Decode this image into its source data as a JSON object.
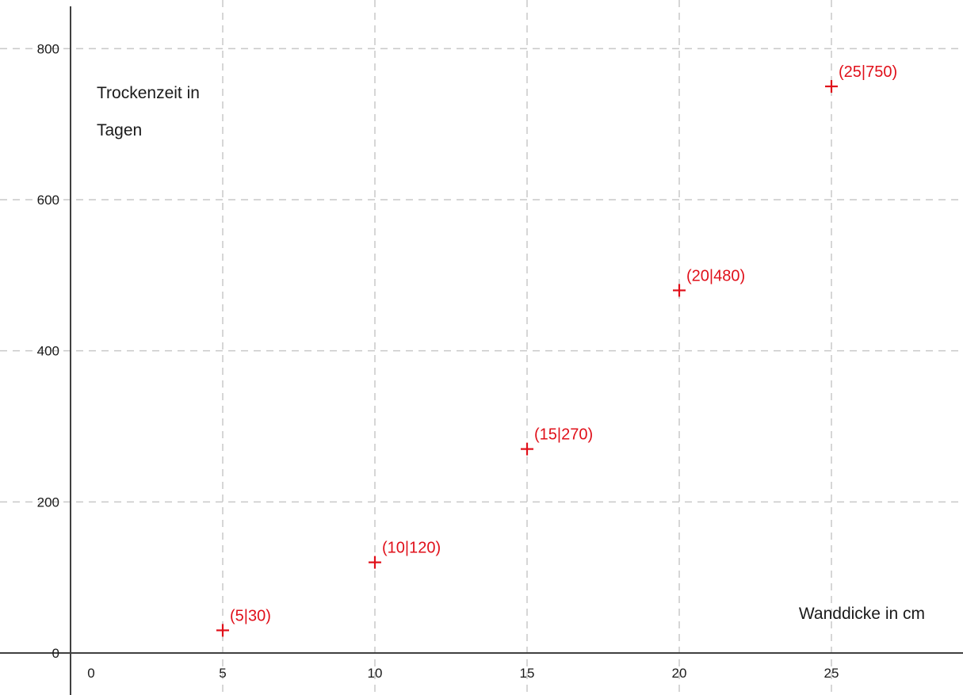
{
  "chart_data": {
    "type": "scatter",
    "title": "",
    "xlabel": "Wanddicke in cm",
    "ylabel_lines": [
      "Trockenzeit in",
      "Tagen"
    ],
    "xlim": [
      -0.7,
      29
    ],
    "ylim": [
      -20,
      850
    ],
    "x_ticks": [
      0,
      5,
      10,
      15,
      20,
      25
    ],
    "y_ticks": [
      0,
      200,
      400,
      600,
      800
    ],
    "grid": true,
    "marker": "plus",
    "marker_color": "#e0101a",
    "points": [
      {
        "x": 5,
        "y": 30,
        "label": "(5|30)"
      },
      {
        "x": 10,
        "y": 120,
        "label": "(10|120)"
      },
      {
        "x": 15,
        "y": 270,
        "label": "(15|270)"
      },
      {
        "x": 20,
        "y": 480,
        "label": "(20|480)"
      },
      {
        "x": 25,
        "y": 750,
        "label": "(25|750)"
      }
    ]
  }
}
